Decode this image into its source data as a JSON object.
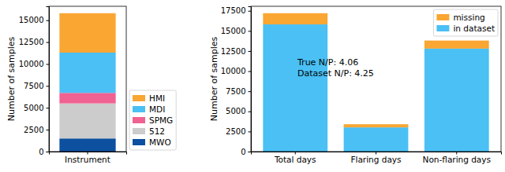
{
  "chart_data": [
    {
      "type": "bar",
      "stacked": true,
      "categories": [
        "Instrument"
      ],
      "ylabel": "Number of samples",
      "series": [
        {
          "name": "MWO",
          "color": "#0d50a0",
          "values": [
            1500
          ]
        },
        {
          "name": "512",
          "color": "#cccccc",
          "values": [
            4000
          ]
        },
        {
          "name": "SPMG",
          "color": "#f06292",
          "values": [
            1200
          ]
        },
        {
          "name": "MDI",
          "color": "#4ac0f5",
          "values": [
            4600
          ]
        },
        {
          "name": "HMI",
          "color": "#f9a633",
          "values": [
            4500
          ]
        }
      ],
      "ylim": [
        0,
        16590
      ],
      "yticks": [
        0,
        2500,
        5000,
        7500,
        10000,
        12500,
        15000
      ],
      "legend": "right"
    },
    {
      "type": "bar",
      "stacked": true,
      "categories": [
        "Total days",
        "Flaring days",
        "Non-flaring days"
      ],
      "ylabel": "Number of samples",
      "series": [
        {
          "name": "in dataset",
          "color": "#4ac0f5",
          "values": [
            15810,
            3010,
            12800
          ]
        },
        {
          "name": "missing",
          "color": "#f9a633",
          "values": [
            1390,
            390,
            1000
          ]
        }
      ],
      "annotations": [
        "True N/P: 4.06",
        "Dataset N/P: 4.25"
      ],
      "ylim": [
        0,
        18060
      ],
      "yticks": [
        0,
        2500,
        5000,
        7500,
        10000,
        12500,
        15000,
        17500
      ],
      "legend": "upper right"
    }
  ]
}
